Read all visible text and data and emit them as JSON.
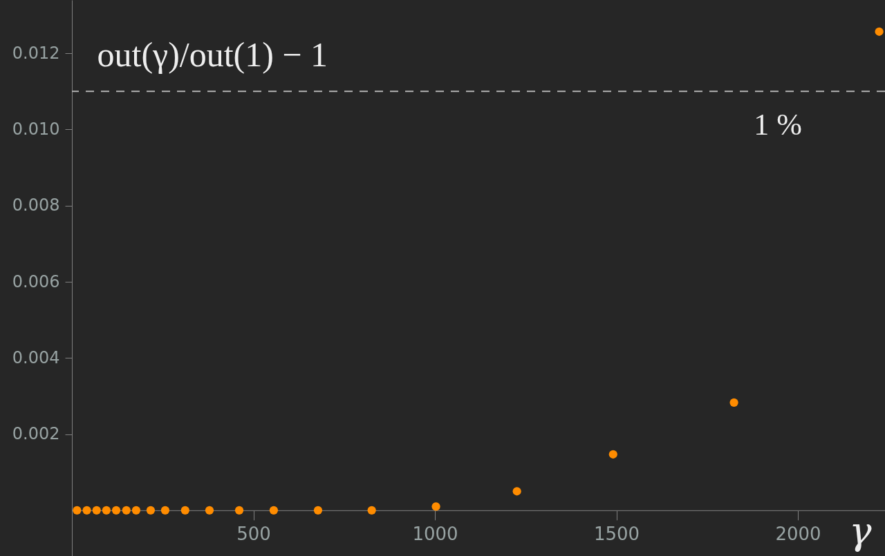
{
  "chart_data": {
    "type": "scatter",
    "ylabel": "out(γ)/out(1) − 1",
    "xlabel": "γ",
    "series": [
      {
        "color": "#ff8c00",
        "x": [
          14,
          41,
          68,
          95,
          122,
          150,
          177,
          217,
          257,
          312,
          379,
          461,
          556,
          678,
          826,
          1003,
          1226,
          1491,
          1824,
          2224
        ],
        "values": [
          0,
          0,
          0,
          0,
          0,
          0,
          0,
          0,
          0,
          0,
          0,
          0,
          0,
          0,
          0,
          0.0001,
          0.0005,
          0.00147,
          0.00283,
          0.01257
        ]
      }
    ],
    "xlim": [
      0,
      2240
    ],
    "xticks": [
      500,
      1000,
      1500,
      2000
    ],
    "ylim": [
      -0.0012,
      0.0134
    ],
    "yticks": [
      0.002,
      0.004,
      0.006,
      0.008,
      {
        "value": 0.01,
        "label": "0.010"
      },
      0.012
    ],
    "ref_lines": [
      {
        "axis": "y",
        "value": 0.011,
        "label": "1 %",
        "line_style": "dashed",
        "color": "#b4b4b4"
      }
    ],
    "marker": "circle",
    "grid": false
  }
}
